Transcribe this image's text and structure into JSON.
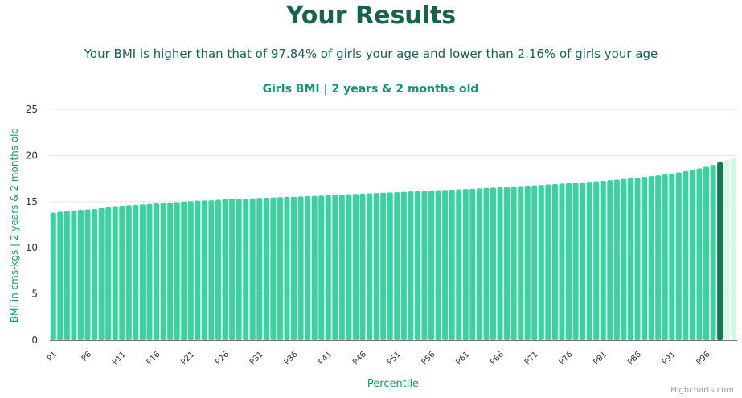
{
  "page": {
    "title": "Your Results",
    "subtitle": "Your BMI is higher than that of 97.84% of girls your age and lower than 2.16% of girls your age",
    "credits": "Highcharts.com"
  },
  "colors": {
    "heading": "#17634f",
    "accent": "#0f9b6c",
    "bar": "#3ad29f",
    "highlight": "#11784f",
    "faded": "#d4f6e7",
    "grid": "#e6e6e6"
  },
  "chart_data": {
    "type": "bar",
    "title": "Girls BMI | 2 years & 2 months old",
    "xlabel": "Percentile",
    "ylabel": "BMI in cms-kgs | 2 years & 2 months old",
    "ylim": [
      0,
      25
    ],
    "yticks": [
      0,
      5,
      10,
      15,
      20,
      25
    ],
    "grid": true,
    "legend": "none",
    "x_tick_labels": [
      "P1",
      "P6",
      "P11",
      "P16",
      "P21",
      "P26",
      "P31",
      "P36",
      "P41",
      "P46",
      "P51",
      "P56",
      "P61",
      "P66",
      "P71",
      "P76",
      "P81",
      "P86",
      "P91",
      "P96"
    ],
    "highlight_percentile": 98,
    "values": [
      13.8,
      13.9,
      14.0,
      14.05,
      14.1,
      14.15,
      14.2,
      14.3,
      14.4,
      14.5,
      14.55,
      14.6,
      14.65,
      14.7,
      14.75,
      14.8,
      14.85,
      14.9,
      14.95,
      15.0,
      15.05,
      15.1,
      15.12,
      15.15,
      15.2,
      15.25,
      15.28,
      15.3,
      15.33,
      15.36,
      15.4,
      15.42,
      15.45,
      15.48,
      15.5,
      15.53,
      15.56,
      15.6,
      15.63,
      15.66,
      15.7,
      15.73,
      15.76,
      15.8,
      15.83,
      15.86,
      15.9,
      15.93,
      15.96,
      16.0,
      16.03,
      16.06,
      16.1,
      16.13,
      16.16,
      16.2,
      16.23,
      16.27,
      16.3,
      16.33,
      16.37,
      16.4,
      16.44,
      16.48,
      16.52,
      16.56,
      16.6,
      16.64,
      16.68,
      16.72,
      16.76,
      16.8,
      16.85,
      16.9,
      16.95,
      17.0,
      17.05,
      17.1,
      17.15,
      17.2,
      17.26,
      17.32,
      17.38,
      17.45,
      17.52,
      17.6,
      17.68,
      17.76,
      17.85,
      17.95,
      18.05,
      18.16,
      18.3,
      18.45,
      18.6,
      18.78,
      18.98,
      19.25,
      19.5,
      19.75
    ]
  }
}
